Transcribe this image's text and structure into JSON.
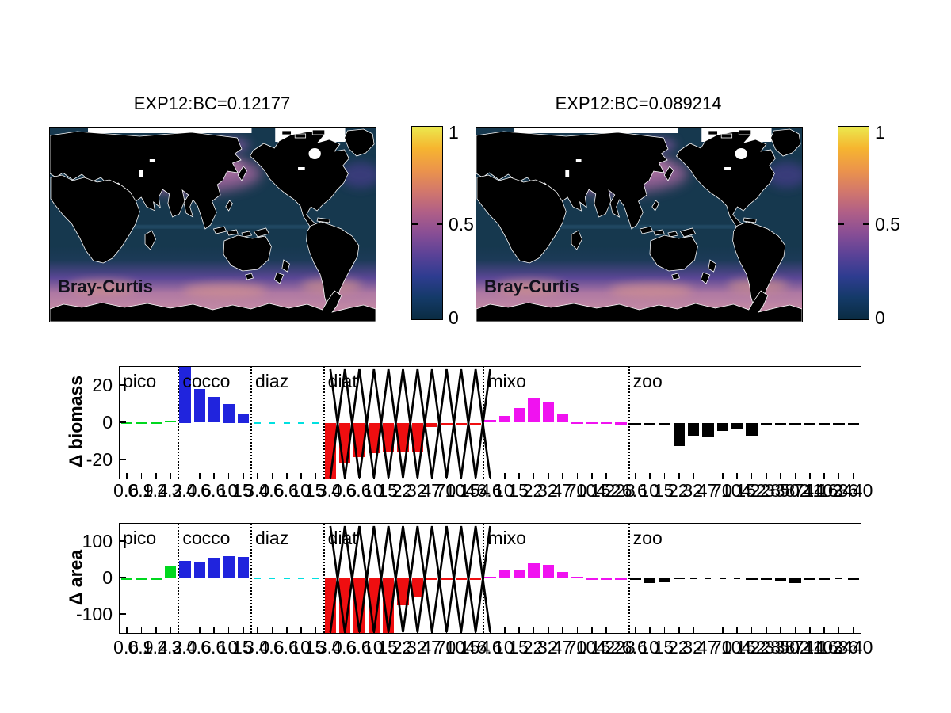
{
  "maps": [
    {
      "title": "EXP12:BC=0.12177",
      "corner_label": "Bray-Curtis",
      "colorbar": {
        "ticks": [
          "1",
          "0.5",
          "0"
        ]
      }
    },
    {
      "title": "EXP12:BC=0.089214",
      "corner_label": "Bray-Curtis",
      "colorbar": {
        "ticks": [
          "1",
          "0.5",
          "0"
        ]
      }
    }
  ],
  "colormap_stops": [
    "#0a2c42",
    "#143a68",
    "#2e3c90",
    "#5a4297",
    "#884e95",
    "#b05f87",
    "#d3786b",
    "#ec954a",
    "#f6b52f",
    "#ebe84e"
  ],
  "map_colors": {
    "land": "#000000",
    "ocean": "#16384e",
    "southern_band": "#bd83a6",
    "north_pacific_patch": "#9c639a",
    "coastline": "#ffffff"
  },
  "plankton_groups": [
    {
      "name": "pico",
      "color": "#00d81e",
      "sizes": [
        "0.6",
        "0.9",
        "1.4",
        "2.2"
      ]
    },
    {
      "name": "cocco",
      "color": "#2024dd",
      "sizes": [
        "3.0",
        "4.6",
        "6.6",
        "10",
        "15"
      ]
    },
    {
      "name": "diaz",
      "color": "#00e0e0",
      "sizes": [
        "3.0",
        "4.6",
        "6.6",
        "10",
        "15"
      ]
    },
    {
      "name": "diat",
      "color": "#ef0e10",
      "sizes": [
        "3.0",
        "4.6",
        "6.6",
        "10",
        "15",
        "22",
        "32",
        "47",
        "70",
        "104",
        "154"
      ]
    },
    {
      "name": "mixo",
      "color": "#f012f0",
      "sizes": [
        "6.6",
        "10",
        "15",
        "22",
        "32",
        "47",
        "70",
        "104",
        "152",
        "228"
      ]
    },
    {
      "name": "zoo",
      "color": "#000000",
      "sizes": [
        "6.6",
        "10",
        "15",
        "22",
        "32",
        "47",
        "70",
        "104",
        "152",
        "228",
        "338",
        "502",
        "744",
        "1103",
        "1636",
        "2440"
      ]
    }
  ],
  "chart_data": [
    {
      "type": "bar",
      "ylabel": "Δ biomass",
      "ylim": [
        -30,
        30
      ],
      "yticks": [
        {
          "v": 20,
          "label": "20"
        },
        {
          "v": 0,
          "label": "0"
        },
        {
          "v": -20,
          "label": "-20"
        }
      ],
      "zigzag_over_group": "diat",
      "series": [
        {
          "group": "pico",
          "values": [
            0.3,
            0.3,
            0.2,
            1.2
          ]
        },
        {
          "group": "cocco",
          "values": [
            35,
            18,
            14,
            10,
            5
          ]
        },
        {
          "group": "diaz",
          "values": [
            0,
            0,
            0,
            0,
            0
          ]
        },
        {
          "group": "diat",
          "values": [
            -35,
            -21.5,
            -18.5,
            -16.5,
            -16,
            -16,
            -15.5,
            -2.5,
            -1.5,
            -0.5,
            -0.3
          ]
        },
        {
          "group": "mixo",
          "values": [
            1.5,
            3.5,
            8,
            13,
            11,
            4.5,
            0.3,
            0.2,
            0.2,
            0.1
          ]
        },
        {
          "group": "zoo",
          "values": [
            -0.2,
            -1.5,
            -0.5,
            -12.5,
            -7,
            -7.5,
            -4.5,
            -3.5,
            -7,
            -0.8,
            -0.4,
            -1.5,
            -0.3,
            -0.2,
            -0.4,
            -0.2
          ]
        }
      ]
    },
    {
      "type": "bar",
      "ylabel": "Δ area",
      "ylim": [
        -150,
        150
      ],
      "yticks": [
        {
          "v": 100,
          "label": "100"
        },
        {
          "v": 0,
          "label": "0"
        },
        {
          "v": -100,
          "label": "-100"
        }
      ],
      "zigzag_over_group": "diat",
      "series": [
        {
          "group": "pico",
          "values": [
            1.5,
            1.5,
            0.5,
            32
          ]
        },
        {
          "group": "cocco",
          "values": [
            47,
            43,
            57,
            61,
            58
          ]
        },
        {
          "group": "diaz",
          "values": [
            0,
            0,
            0,
            0,
            0
          ]
        },
        {
          "group": "diat",
          "values": [
            -170,
            -170,
            -165,
            -160,
            -160,
            -74,
            -49,
            -1,
            -0.5,
            -0.5,
            -0.3
          ]
        },
        {
          "group": "mixo",
          "values": [
            5,
            22,
            25,
            42,
            37,
            17,
            5,
            0.5,
            0.3,
            0.2
          ]
        },
        {
          "group": "zoo",
          "values": [
            -3,
            -12,
            -10,
            2,
            0,
            0,
            0,
            0,
            -5,
            -2,
            -8,
            -13,
            -3,
            -0.5,
            0,
            -1
          ]
        }
      ]
    }
  ]
}
